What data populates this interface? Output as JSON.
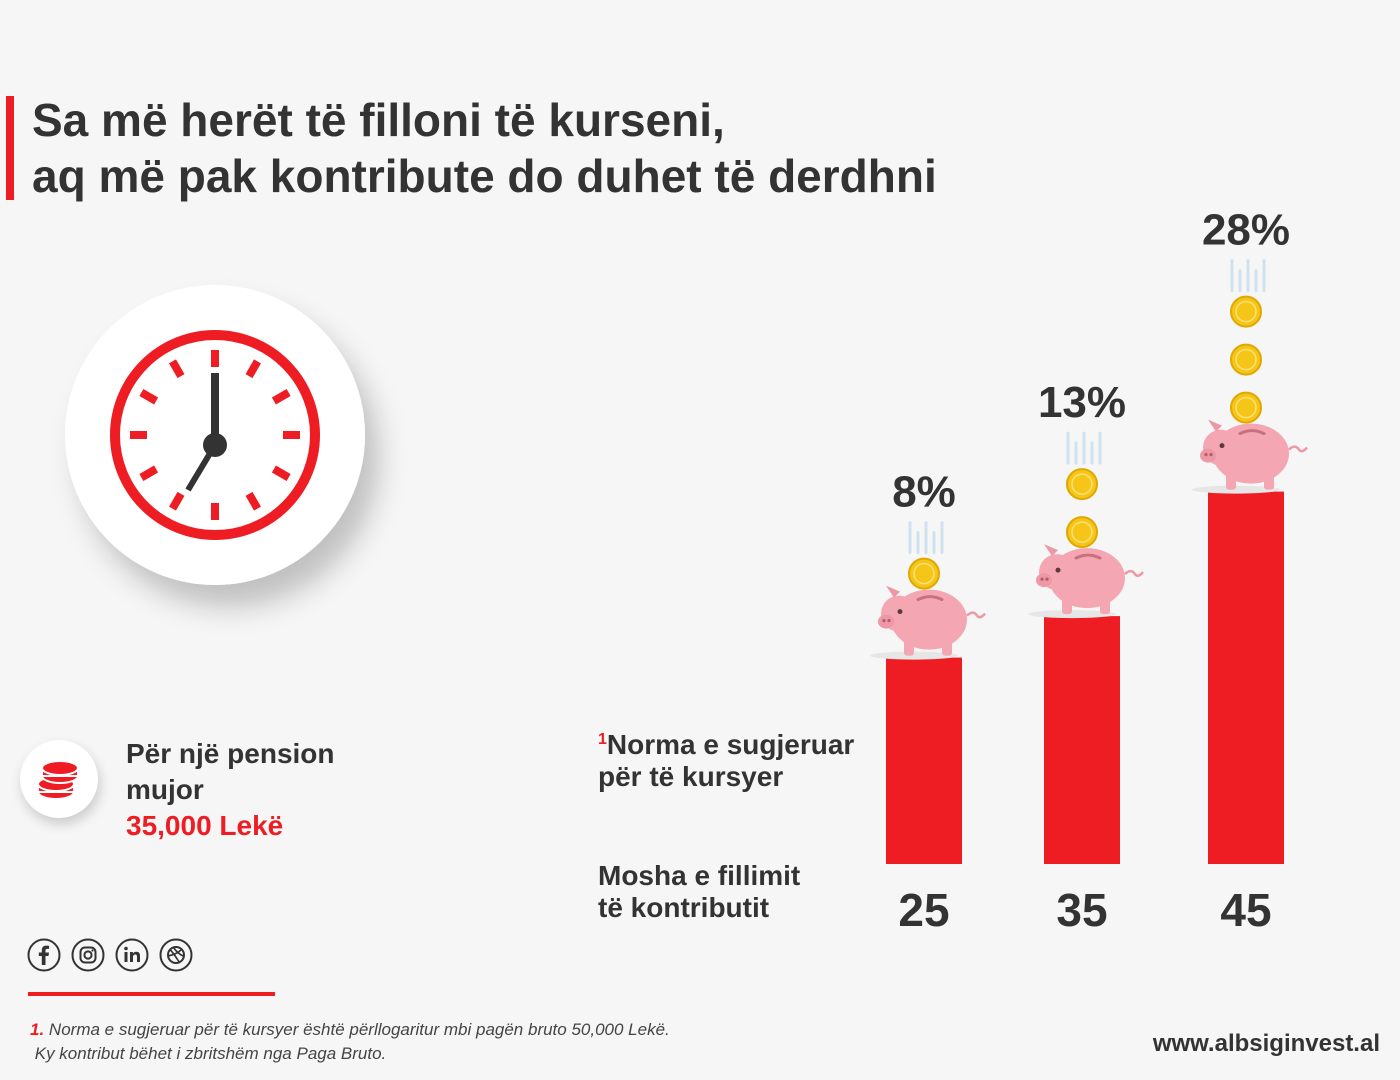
{
  "header": {
    "title_line1": "Sa më herët të filloni të kurseni,",
    "title_line2": "aq më pak kontribute do duhet të derdhni"
  },
  "pension": {
    "line1": "Për një pension",
    "line2": "mujor",
    "amount": "35,000 Lekë"
  },
  "labels": {
    "rate_marker": "1",
    "rate_line1": "Norma e sugjeruar",
    "rate_line2": "për të kursyer",
    "age_line1": "Mosha e fillimit",
    "age_line2": "të kontributit"
  },
  "social": {
    "icons": [
      "facebook-icon",
      "instagram-icon",
      "linkedin-icon",
      "dribbble-icon"
    ]
  },
  "footnote": {
    "marker": "1.",
    "line1": "Norma e sugjeruar për të kursyer është përllogaritur mbi pagën bruto 50,000 Lekë.",
    "line2": "Ky kontribut bëhet i zbritshëm nga Paga Bruto."
  },
  "website": "www.albsiginvest.al",
  "colors": {
    "accent": "#ee1d23",
    "text": "#333333",
    "background": "#f6f6f6",
    "piggy": "#f4a7b2",
    "coin": "#f5c518"
  },
  "chart_data": {
    "type": "bar",
    "categories": [
      "25",
      "35",
      "45"
    ],
    "values": [
      8,
      13,
      28
    ],
    "value_labels": [
      "8%",
      "13%",
      "28%"
    ],
    "coins_per_bar": [
      1,
      2,
      3
    ],
    "title": "",
    "xlabel": "Mosha e fillimit të kontributit",
    "ylabel": "Norma e sugjeruar për të kursyer"
  }
}
